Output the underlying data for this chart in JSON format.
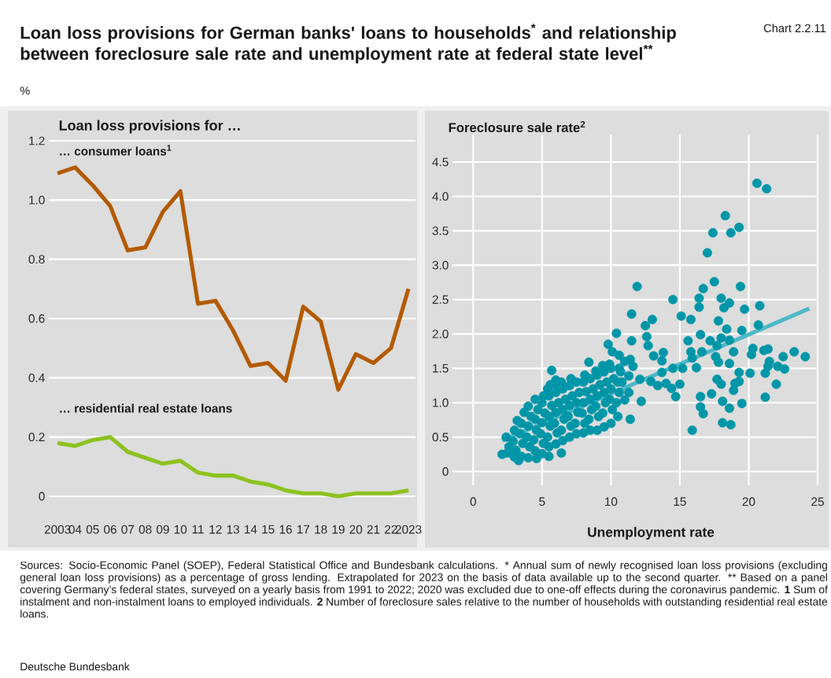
{
  "chart_data": [
    {
      "type": "line",
      "title": "Loan loss provisions for German banks' loans to households$^{*}$ and relationship between foreclosure sale rate and unemployment rate at federal state level$^{**}$",
      "subtitle": "Loan loss provisions for …",
      "ylabel": "%",
      "categories": [
        "2003",
        "04",
        "05",
        "06",
        "07",
        "08",
        "09",
        "10",
        "11",
        "12",
        "13",
        "14",
        "15",
        "16",
        "17",
        "18",
        "19",
        "20",
        "21",
        "22",
        "2023"
      ],
      "series": [
        {
          "name": "… consumer loans$^{1}$",
          "color": "#b35a00",
          "values": [
            1.09,
            1.11,
            1.05,
            0.98,
            0.83,
            0.84,
            0.96,
            1.03,
            0.65,
            0.66,
            0.56,
            0.44,
            0.45,
            0.39,
            0.64,
            0.59,
            0.36,
            0.48,
            0.45,
            0.5,
            0.7
          ]
        },
        {
          "name": "… residential real estate loans",
          "color": "#8dc21f",
          "values": [
            0.18,
            0.17,
            0.19,
            0.2,
            0.15,
            0.13,
            0.11,
            0.12,
            0.08,
            0.07,
            0.07,
            0.05,
            0.04,
            0.02,
            0.01,
            0.01,
            0.0,
            0.01,
            0.01,
            0.01,
            0.02
          ]
        }
      ],
      "ylim": [
        0,
        1.2
      ],
      "yticks": [
        0,
        0.2,
        0.4,
        0.6,
        0.8,
        {
          "value": 1,
          "label": "1.0"
        },
        1.2
      ],
      "grid": "y",
      "annotations": [
        "Chart 2.2.11",
        "Sources: Socio-Economic Panel (SOEP), Federal Statistical Office and Bundesbank calculations.",
        "* Annual sum of newly recognised loan loss provisions (excluding general loan loss provisions) as a percentage of gross lending. Extrapolated for 2023 on the basis of data available up to the second quarter.",
        "** Based on a panel covering Germany’s federal states, surveyed on a yearly basis from 1991 to 2022; 2020 was excluded due to one-off effects during the coronavirus pandemic.",
        "**1** Sum of instalment and non-instalment loans to employed individuals.",
        "**2** Number of foreclosure sales relative to the number of households with outstanding residential real estate loans.",
        "Deutsche Bundesbank"
      ]
    },
    {
      "type": "scatter",
      "ylabel": "Foreclosure sale rate$^{2}$",
      "xlabel": "Unemployment rate",
      "grid": true,
      "xlim": [
        -1.5,
        25
      ],
      "xticks": [
        0,
        5,
        10,
        15,
        20,
        25
      ],
      "ylim": [
        -0.2,
        4.9
      ],
      "yticks": [
        0,
        0.5,
        {
          "value": 1,
          "label": "1.0"
        },
        1.5,
        {
          "value": 2,
          "label": "2.0"
        },
        2.5,
        {
          "value": 3,
          "label": "3.0"
        },
        3.5,
        {
          "value": 4,
          "label": "4.0"
        },
        4.5
      ],
      "series": [
        {
          "type": "scatter",
          "marker": "circle",
          "color": "#0096a8",
          "x": [
            20.6,
            21.3,
            18.3,
            17.4,
            18.7,
            19.3,
            17.0,
            11.9,
            17.5,
            16.7,
            19.4,
            20.8,
            14.5,
            16.4,
            16.4,
            18.0,
            18.2,
            18.6,
            19.7,
            11.5,
            13.0,
            12.5,
            15.1,
            15.8,
            17.8,
            20.7,
            12.6,
            12.7,
            13.1,
            13.8,
            13.7,
            11.4,
            11.6,
            11.3,
            12.1,
            12.9,
            13.4,
            14.0,
            14.4,
            15.0,
            14.7,
            13.7,
            14.5,
            15.2,
            16.2,
            16.6,
            15.8,
            15.9,
            15.6,
            16.5,
            17.2,
            17.7,
            18.0,
            18.6,
            18.4,
            19.5,
            18.9,
            17.6,
            17.8,
            18.6,
            19.3,
            20.1,
            20.3,
            20.2,
            21.1,
            21.4,
            21.5,
            21.4,
            21.2,
            22.1,
            22.6,
            22.5,
            23.3,
            24.1,
            22.0,
            21.2,
            17.7,
            18.0,
            19.0,
            19.3,
            18.9,
            17.3,
            16.5,
            16.5,
            16.7,
            18.1,
            18.6,
            19.5,
            18.1,
            18.7,
            15.9,
            11.4,
            12.2,
            11.0,
            10.4,
            9.8,
            10.1,
            10.6,
            8.4,
            5.7,
            8.9,
            9.4,
            9.9,
            6.0,
            5.6,
            6.4,
            5.5,
            4.6,
            3.3,
            2.1,
            11.0,
            10.6,
            11.5,
            10.8,
            11.3,
            2.5,
            2.6,
            2.4,
            3.0,
            3.1,
            2.9,
            3.0,
            3.2,
            3.5,
            3.6,
            3.4,
            3.5,
            3.7,
            4.0,
            4.1,
            3.9,
            4.0,
            4.2,
            4.0,
            4.5,
            4.4,
            4.6,
            4.5,
            4.7,
            4.5,
            5.0,
            5.1,
            4.9,
            5.0,
            5.2,
            5.0,
            5.1,
            5.5,
            5.4,
            5.6,
            5.5,
            5.7,
            5.5,
            5.4,
            6.0,
            6.1,
            5.9,
            6.0,
            6.2,
            6.0,
            6.1,
            6.5,
            6.4,
            6.6,
            6.5,
            6.7,
            6.5,
            6.4,
            7.0,
            7.1,
            6.9,
            7.0,
            7.2,
            7.0,
            7.1,
            7.5,
            7.4,
            7.6,
            7.5,
            7.7,
            7.5,
            8.0,
            8.1,
            7.9,
            8.0,
            8.2,
            8.0,
            8.1,
            8.5,
            8.4,
            8.6,
            8.5,
            8.7,
            8.5,
            9.0,
            9.1,
            8.9,
            9.0,
            9.2,
            9.0,
            9.5,
            9.4,
            9.6,
            9.5,
            9.7,
            9.5,
            10.0,
            10.1,
            9.9,
            10.0,
            10.2,
            10.0,
            10.5,
            10.4,
            10.6,
            10.5,
            10.7
          ],
          "values": [
            4.19,
            4.11,
            3.72,
            3.47,
            3.47,
            3.55,
            3.18,
            2.69,
            2.76,
            2.66,
            2.69,
            2.41,
            2.5,
            2.52,
            2.39,
            2.52,
            2.38,
            2.45,
            2.36,
            2.29,
            2.21,
            2.12,
            2.26,
            2.21,
            2.19,
            2.13,
            1.96,
            1.83,
            1.68,
            1.73,
            1.61,
            1.63,
            1.53,
            1.39,
            1.34,
            1.31,
            1.25,
            1.28,
            1.21,
            1.27,
            1.09,
            1.44,
            1.5,
            1.5,
            1.51,
            1.74,
            1.74,
            1.65,
            1.9,
            1.99,
            1.9,
            1.83,
            1.94,
            1.91,
            2.07,
            2.05,
            1.74,
            1.67,
            1.59,
            1.57,
            1.44,
            1.43,
            1.79,
            1.7,
            1.76,
            1.78,
            1.6,
            1.53,
            1.43,
            1.53,
            1.49,
            1.67,
            1.74,
            1.67,
            1.27,
            1.08,
            1.34,
            1.27,
            1.28,
            1.31,
            1.18,
            1.13,
            1.09,
            0.94,
            0.84,
            1.02,
            0.92,
            0.99,
            0.71,
            0.68,
            0.6,
            0.76,
            1.02,
            1.04,
            2.01,
            1.85,
            1.74,
            1.69,
            1.59,
            1.47,
            1.46,
            1.54,
            1.56,
            1.33,
            1.26,
            0.27,
            0.22,
            0.19,
            0.16,
            0.25,
            1.6,
            1.5,
            1.9,
            1.3,
            1.15,
            0.27,
            0.36,
            0.5,
            0.21,
            0.31,
            0.44,
            0.6,
            0.74,
            0.22,
            0.41,
            0.55,
            0.7,
            0.86,
            0.2,
            0.36,
            0.5,
            0.66,
            0.8,
            0.95,
            0.3,
            0.46,
            0.6,
            0.76,
            0.9,
            1.05,
            0.26,
            0.41,
            0.55,
            0.71,
            0.85,
            1.0,
            1.1,
            0.36,
            0.5,
            0.66,
            0.8,
            0.96,
            1.1,
            1.2,
            0.4,
            0.56,
            0.7,
            0.86,
            1.0,
            1.15,
            1.25,
            0.45,
            0.6,
            0.76,
            0.9,
            1.05,
            1.2,
            1.3,
            0.5,
            0.66,
            0.8,
            0.96,
            1.1,
            1.25,
            1.35,
            0.55,
            0.7,
            0.86,
            1.0,
            1.15,
            1.3,
            0.56,
            0.7,
            0.85,
            1.0,
            1.16,
            1.3,
            1.4,
            0.6,
            0.76,
            0.9,
            1.05,
            1.2,
            1.35,
            0.6,
            0.8,
            0.95,
            1.1,
            1.26,
            1.4,
            0.65,
            0.85,
            1.0,
            1.15,
            1.3,
            1.45,
            0.7,
            0.9,
            1.05,
            1.2,
            1.35,
            1.5,
            0.8,
            1.0,
            1.15,
            1.3,
            1.45
          ]
        },
        {
          "type": "line",
          "color": "#4db8c8",
          "x": [
            2.1,
            24.4
          ],
          "values": [
            0.45,
            2.37
          ]
        }
      ]
    }
  ]
}
